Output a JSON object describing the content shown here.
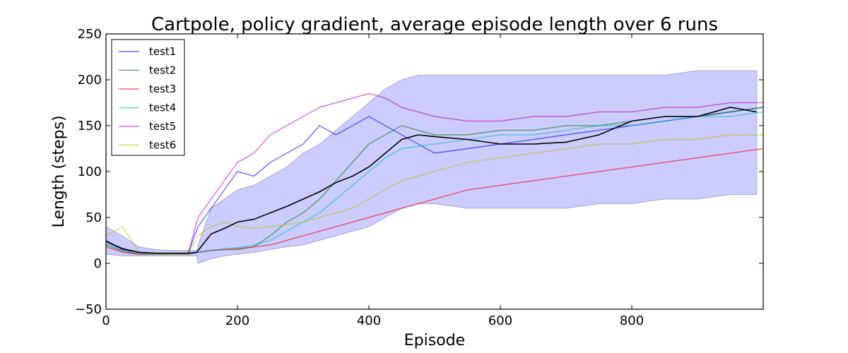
{
  "chart_data": {
    "type": "line",
    "title": "Cartpole, policy gradient, average episode length over 6 runs",
    "xlabel": "Episode",
    "ylabel": "Length (steps)",
    "xlim": [
      0,
      1000
    ],
    "ylim": [
      -50,
      250
    ],
    "x_ticks": [
      0,
      200,
      400,
      600,
      800
    ],
    "x_tick_labels": [
      "0",
      "200",
      "400",
      "600",
      "800"
    ],
    "y_ticks": [
      -50,
      0,
      50,
      100,
      150,
      200,
      250
    ],
    "y_tick_labels": [
      "−50",
      "0",
      "50",
      "100",
      "150",
      "200",
      "250"
    ],
    "grid": false,
    "legend_position": "top-left",
    "series": [
      {
        "name": "test1",
        "color": "#0000ff",
        "x": [
          0,
          25,
          50,
          75,
          100,
          125,
          140,
          160,
          180,
          200,
          225,
          250,
          275,
          300,
          325,
          350,
          375,
          400,
          425,
          450,
          500,
          550,
          600,
          650,
          700,
          750,
          800,
          850,
          900,
          950,
          1000
        ],
        "y": [
          25,
          15,
          12,
          11,
          11,
          11,
          40,
          60,
          80,
          100,
          95,
          110,
          120,
          130,
          150,
          140,
          150,
          160,
          150,
          140,
          120,
          125,
          130,
          135,
          140,
          145,
          150,
          155,
          160,
          165,
          170
        ]
      },
      {
        "name": "test2",
        "color": "#008000",
        "x": [
          0,
          25,
          50,
          75,
          100,
          125,
          140,
          160,
          180,
          200,
          225,
          250,
          275,
          300,
          325,
          350,
          375,
          400,
          425,
          450,
          500,
          550,
          600,
          650,
          700,
          750,
          800,
          850,
          900,
          950,
          1000
        ],
        "y": [
          20,
          13,
          10,
          10,
          10,
          10,
          12,
          14,
          15,
          15,
          18,
          30,
          45,
          55,
          70,
          90,
          110,
          130,
          140,
          150,
          140,
          140,
          145,
          145,
          150,
          150,
          155,
          160,
          160,
          165,
          170
        ]
      },
      {
        "name": "test3",
        "color": "#ff0000",
        "x": [
          0,
          25,
          50,
          75,
          100,
          125,
          140,
          160,
          180,
          200,
          225,
          250,
          275,
          300,
          325,
          350,
          375,
          400,
          425,
          450,
          500,
          550,
          600,
          650,
          700,
          750,
          800,
          850,
          900,
          950,
          1000
        ],
        "y": [
          18,
          12,
          10,
          10,
          10,
          10,
          12,
          14,
          15,
          16,
          18,
          20,
          25,
          30,
          35,
          40,
          45,
          50,
          55,
          60,
          70,
          80,
          85,
          90,
          95,
          100,
          105,
          110,
          115,
          120,
          125
        ]
      },
      {
        "name": "test4",
        "color": "#00bfbf",
        "x": [
          0,
          25,
          50,
          75,
          100,
          125,
          140,
          160,
          180,
          200,
          225,
          250,
          275,
          300,
          325,
          350,
          375,
          400,
          425,
          450,
          500,
          550,
          600,
          650,
          700,
          750,
          800,
          850,
          900,
          950,
          1000
        ],
        "y": [
          22,
          14,
          11,
          10,
          10,
          10,
          12,
          14,
          16,
          17,
          20,
          25,
          35,
          45,
          55,
          70,
          85,
          100,
          115,
          125,
          130,
          135,
          140,
          140,
          145,
          150,
          150,
          155,
          160,
          160,
          165
        ]
      },
      {
        "name": "test5",
        "color": "#bf00bf",
        "x": [
          0,
          25,
          50,
          75,
          100,
          125,
          140,
          160,
          180,
          200,
          225,
          250,
          275,
          300,
          325,
          350,
          375,
          400,
          425,
          450,
          500,
          550,
          600,
          650,
          700,
          750,
          800,
          850,
          900,
          950,
          1000
        ],
        "y": [
          24,
          15,
          12,
          11,
          11,
          11,
          50,
          70,
          90,
          110,
          120,
          140,
          150,
          160,
          170,
          175,
          180,
          185,
          180,
          170,
          160,
          155,
          155,
          160,
          160,
          165,
          165,
          170,
          170,
          175,
          175
        ]
      },
      {
        "name": "test6",
        "color": "#bfbf00",
        "x": [
          0,
          25,
          50,
          75,
          100,
          125,
          140,
          160,
          180,
          200,
          225,
          250,
          275,
          300,
          325,
          350,
          375,
          400,
          425,
          450,
          500,
          550,
          600,
          650,
          700,
          750,
          800,
          850,
          900,
          950,
          1000
        ],
        "y": [
          30,
          40,
          12,
          10,
          10,
          10,
          30,
          40,
          45,
          40,
          38,
          40,
          42,
          45,
          50,
          55,
          60,
          70,
          80,
          90,
          100,
          110,
          115,
          120,
          125,
          130,
          130,
          135,
          135,
          140,
          140
        ]
      }
    ],
    "mean_series": {
      "color": "#000000",
      "x": [
        0,
        25,
        50,
        75,
        100,
        125,
        138,
        160,
        180,
        200,
        225,
        250,
        275,
        300,
        325,
        350,
        375,
        400,
        425,
        450,
        475,
        500,
        550,
        600,
        650,
        700,
        750,
        800,
        850,
        900,
        950,
        990
      ],
      "y": [
        24,
        16,
        12,
        11,
        11,
        11,
        12,
        32,
        38,
        45,
        48,
        55,
        62,
        70,
        78,
        88,
        95,
        105,
        120,
        135,
        140,
        138,
        135,
        130,
        130,
        132,
        140,
        155,
        160,
        160,
        170,
        165
      ]
    },
    "std_band": {
      "color": "#8080ff",
      "x": [
        0,
        25,
        50,
        75,
        100,
        125,
        138,
        140,
        160,
        180,
        200,
        225,
        250,
        275,
        300,
        325,
        350,
        375,
        400,
        425,
        450,
        475,
        500,
        550,
        600,
        650,
        700,
        750,
        800,
        850,
        900,
        950,
        990
      ],
      "lower": [
        10,
        8,
        8,
        8,
        8,
        8,
        8,
        0,
        5,
        8,
        10,
        12,
        15,
        18,
        20,
        25,
        30,
        35,
        40,
        50,
        60,
        65,
        65,
        60,
        60,
        60,
        60,
        65,
        65,
        70,
        70,
        75,
        75
      ],
      "upper": [
        40,
        30,
        18,
        15,
        14,
        14,
        14,
        20,
        60,
        70,
        80,
        85,
        95,
        105,
        120,
        130,
        145,
        160,
        175,
        190,
        200,
        205,
        205,
        205,
        205,
        205,
        205,
        205,
        205,
        205,
        210,
        210,
        210
      ]
    }
  }
}
